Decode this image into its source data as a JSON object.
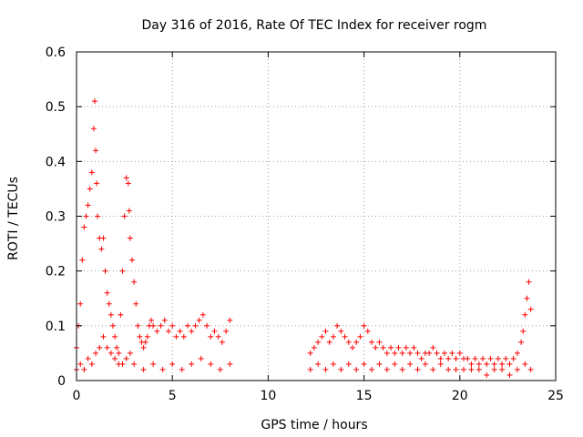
{
  "chart_data": {
    "type": "scatter",
    "title": "Day 316 of 2016, Rate Of TEC Index for receiver rogm",
    "xlabel": "GPS time / hours",
    "ylabel": "ROTI / TECUs",
    "xlim": [
      0,
      25
    ],
    "ylim": [
      0,
      0.6
    ],
    "xticks": [
      0,
      5,
      10,
      15,
      20,
      25
    ],
    "yticks": [
      0,
      0.1,
      0.2,
      0.3,
      0.4,
      0.5,
      0.6
    ],
    "xtick_labels": [
      "0",
      "5",
      "10",
      "15",
      "20",
      "25"
    ],
    "ytick_labels": [
      "0",
      "0.1",
      "0.2",
      "0.3",
      "0.4",
      "0.5",
      "0.6"
    ],
    "grid": true,
    "marker": "+",
    "color": "#ff0000",
    "series": [
      {
        "x": [
          0.0,
          0.1,
          0.2,
          0.3,
          0.4,
          0.5,
          0.6,
          0.7,
          0.8,
          0.9,
          0.95,
          1.0,
          1.05,
          1.1,
          1.2,
          1.3,
          1.4,
          1.5,
          1.6,
          1.7,
          1.8,
          1.9,
          2.0,
          2.1,
          2.2,
          2.3,
          2.4,
          2.5,
          2.6,
          2.7,
          2.75,
          2.8,
          2.9,
          3.0,
          3.1,
          3.2,
          3.3,
          3.4,
          3.5,
          3.6,
          3.7,
          3.8,
          3.9,
          4.0,
          4.2,
          4.4,
          4.6,
          4.8,
          5.0,
          5.2,
          5.4,
          5.6,
          5.8,
          6.0,
          6.2,
          6.4,
          6.6,
          6.8,
          7.0,
          7.2,
          7.4,
          7.6,
          7.8,
          8.0,
          12.2,
          12.4,
          12.6,
          12.8,
          13.0,
          13.2,
          13.4,
          13.6,
          13.8,
          14.0,
          14.2,
          14.4,
          14.6,
          14.8,
          15.0,
          15.2,
          15.4,
          15.6,
          15.8,
          16.0,
          16.2,
          16.4,
          16.6,
          16.8,
          17.0,
          17.2,
          17.4,
          17.6,
          17.8,
          18.0,
          18.2,
          18.4,
          18.6,
          18.8,
          19.0,
          19.2,
          19.4,
          19.6,
          19.8,
          20.0,
          20.2,
          20.4,
          20.6,
          20.8,
          21.0,
          21.2,
          21.4,
          21.6,
          21.8,
          22.0,
          22.2,
          22.4,
          22.6,
          22.8,
          23.0,
          23.2,
          23.3,
          23.4,
          23.5,
          23.6,
          23.7
        ],
        "y": [
          0.06,
          0.1,
          0.14,
          0.22,
          0.28,
          0.3,
          0.32,
          0.35,
          0.38,
          0.46,
          0.51,
          0.42,
          0.36,
          0.3,
          0.26,
          0.24,
          0.26,
          0.2,
          0.16,
          0.14,
          0.12,
          0.1,
          0.08,
          0.06,
          0.05,
          0.12,
          0.2,
          0.3,
          0.37,
          0.36,
          0.31,
          0.26,
          0.22,
          0.18,
          0.14,
          0.1,
          0.08,
          0.07,
          0.06,
          0.07,
          0.08,
          0.1,
          0.11,
          0.1,
          0.09,
          0.1,
          0.11,
          0.09,
          0.1,
          0.08,
          0.09,
          0.08,
          0.1,
          0.09,
          0.1,
          0.11,
          0.12,
          0.1,
          0.08,
          0.09,
          0.08,
          0.07,
          0.09,
          0.11,
          0.05,
          0.06,
          0.07,
          0.08,
          0.09,
          0.07,
          0.08,
          0.1,
          0.09,
          0.08,
          0.07,
          0.06,
          0.07,
          0.08,
          0.1,
          0.09,
          0.07,
          0.06,
          0.07,
          0.06,
          0.05,
          0.06,
          0.05,
          0.06,
          0.05,
          0.06,
          0.05,
          0.06,
          0.05,
          0.04,
          0.05,
          0.05,
          0.06,
          0.05,
          0.04,
          0.05,
          0.04,
          0.05,
          0.04,
          0.05,
          0.04,
          0.04,
          0.03,
          0.04,
          0.03,
          0.04,
          0.03,
          0.04,
          0.03,
          0.04,
          0.03,
          0.04,
          0.03,
          0.04,
          0.05,
          0.07,
          0.09,
          0.12,
          0.15,
          0.18,
          0.13
        ]
      },
      {
        "x": [
          0.0,
          0.2,
          0.4,
          0.6,
          0.8,
          1.0,
          1.2,
          1.4,
          1.6,
          1.8,
          2.0,
          2.2,
          2.4,
          2.6,
          2.8,
          3.0,
          3.5,
          4.0,
          4.5,
          5.0,
          5.5,
          6.0,
          6.5,
          7.0,
          7.5,
          8.0,
          12.2,
          12.6,
          13.0,
          13.4,
          13.8,
          14.2,
          14.6,
          15.0,
          15.4,
          15.8,
          16.2,
          16.6,
          17.0,
          17.4,
          17.8,
          18.2,
          18.6,
          19.0,
          19.4,
          19.8,
          20.2,
          20.6,
          21.0,
          21.4,
          21.8,
          22.2,
          22.6,
          23.0,
          23.4,
          23.7
        ],
        "y": [
          0.02,
          0.03,
          0.02,
          0.04,
          0.03,
          0.05,
          0.06,
          0.08,
          0.06,
          0.05,
          0.04,
          0.03,
          0.03,
          0.04,
          0.05,
          0.03,
          0.02,
          0.03,
          0.02,
          0.03,
          0.02,
          0.03,
          0.04,
          0.03,
          0.02,
          0.03,
          0.02,
          0.03,
          0.02,
          0.03,
          0.02,
          0.03,
          0.02,
          0.03,
          0.02,
          0.03,
          0.02,
          0.03,
          0.02,
          0.03,
          0.02,
          0.03,
          0.02,
          0.03,
          0.02,
          0.02,
          0.02,
          0.02,
          0.02,
          0.01,
          0.02,
          0.02,
          0.01,
          0.02,
          0.03,
          0.02
        ]
      }
    ]
  }
}
